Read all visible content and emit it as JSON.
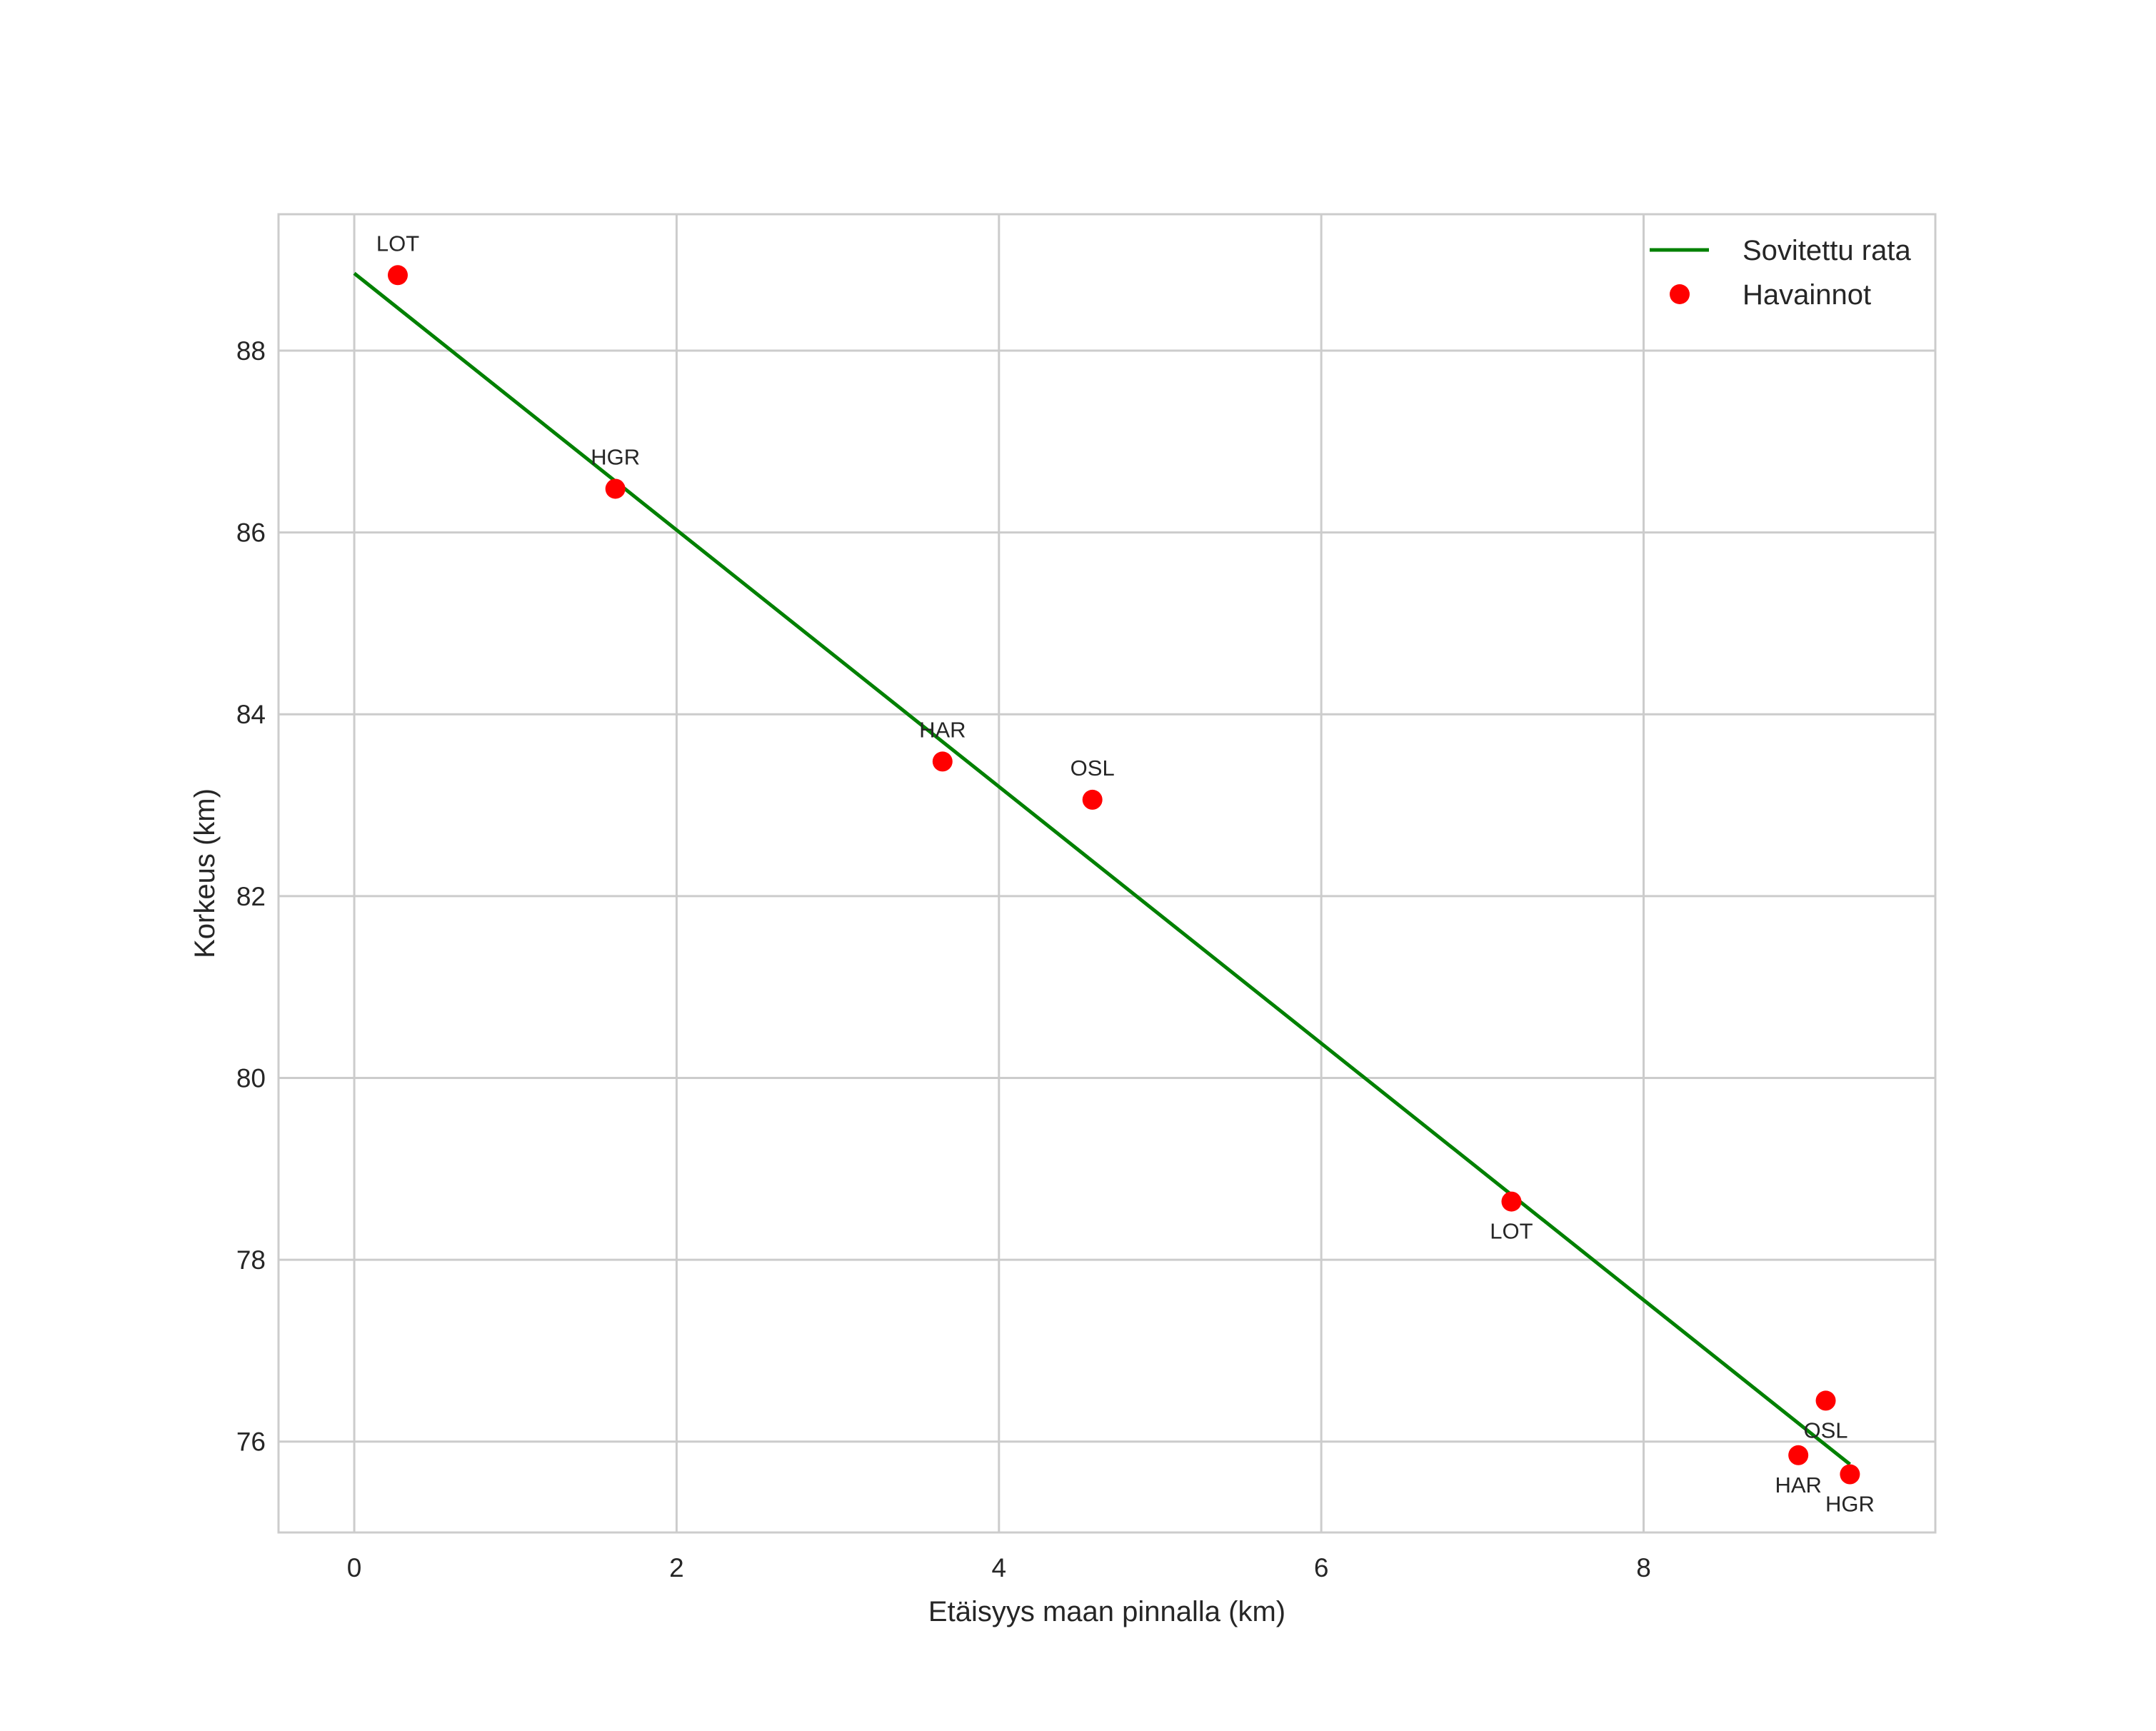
{
  "chart_data": {
    "type": "scatter",
    "title": "",
    "xlabel": "Etäisyys maan pinnalla (km)",
    "ylabel": "Korkeus (km)",
    "xlim": [
      -0.47,
      9.81
    ],
    "ylim": [
      75.0,
      89.5
    ],
    "grid": true,
    "legend_position": "upper right",
    "x_ticks": [
      0,
      2,
      4,
      6,
      8
    ],
    "y_ticks": [
      76,
      78,
      80,
      82,
      84,
      86,
      88
    ],
    "series": [
      {
        "name": "Sovitettu rata",
        "type": "line",
        "color": "#008000",
        "x": [
          0.0,
          9.28
        ],
        "y": [
          88.85,
          75.75
        ]
      },
      {
        "name": "Havainnot",
        "type": "scatter",
        "color": "#ff0000",
        "points": [
          {
            "label": "LOT",
            "x": 0.27,
            "y": 88.83,
            "label_pos": "above"
          },
          {
            "label": "HGR",
            "x": 1.62,
            "y": 86.48,
            "label_pos": "above"
          },
          {
            "label": "HAR",
            "x": 3.65,
            "y": 83.48,
            "label_pos": "above"
          },
          {
            "label": "OSL",
            "x": 4.58,
            "y": 83.06,
            "label_pos": "above"
          },
          {
            "label": "LOT",
            "x": 7.18,
            "y": 78.64,
            "label_pos": "below"
          },
          {
            "label": "OSL",
            "x": 9.13,
            "y": 76.45,
            "label_pos": "below"
          },
          {
            "label": "HAR",
            "x": 8.96,
            "y": 75.85,
            "label_pos": "below"
          },
          {
            "label": "HGR",
            "x": 9.28,
            "y": 75.64,
            "label_pos": "below"
          }
        ]
      }
    ]
  },
  "legend": {
    "items": [
      {
        "label": "Sovitettu rata",
        "symbol": "line",
        "color": "#008000"
      },
      {
        "label": "Havainnot",
        "symbol": "dot",
        "color": "#ff0000"
      }
    ]
  },
  "style": {
    "grid_color": "#cccccc",
    "spine_color": "#cccccc",
    "text_color": "#262626"
  }
}
